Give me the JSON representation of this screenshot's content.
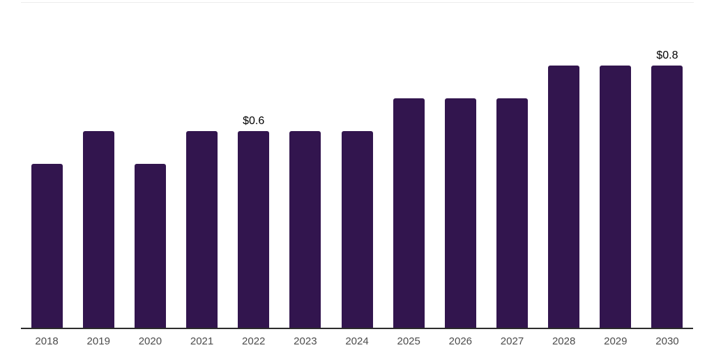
{
  "chart_data": {
    "type": "bar",
    "title": "",
    "xlabel": "",
    "ylabel": "",
    "categories": [
      "2018",
      "2019",
      "2020",
      "2021",
      "2022",
      "2023",
      "2024",
      "2025",
      "2026",
      "2027",
      "2028",
      "2029",
      "2030"
    ],
    "values": [
      0.5,
      0.6,
      0.5,
      0.6,
      0.6,
      0.6,
      0.6,
      0.7,
      0.7,
      0.7,
      0.8,
      0.8,
      0.8
    ],
    "data_labels": [
      "",
      "",
      "",
      "",
      "$0.6",
      "",
      "",
      "",
      "",
      "",
      "",
      "",
      "$0.8"
    ],
    "ylim": [
      0,
      1.0
    ],
    "grid": false,
    "legend": false,
    "bar_color": "#32154e",
    "axis_line_color": "#2b2b2b",
    "top_rule_color": "#ececec",
    "tick_label_color": "#4c4c4c",
    "value_label_color": "#000000"
  }
}
